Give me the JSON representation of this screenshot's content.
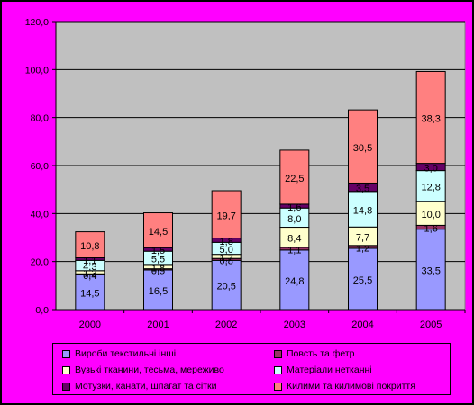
{
  "chart_data": {
    "type": "stacked-bar",
    "categories": [
      "2000",
      "2001",
      "2002",
      "2003",
      "2004",
      "2005"
    ],
    "ylim": [
      0,
      120
    ],
    "yticks": [
      "0,0",
      "20,0",
      "40,0",
      "60,0",
      "80,0",
      "100,0",
      "120,0"
    ],
    "grid": true,
    "legend_position": "bottom",
    "series": [
      {
        "name": "Вироби текстильні інші",
        "color": "#9999FF",
        "values": [
          14.5,
          16.5,
          20.5,
          24.8,
          25.5,
          33.5
        ],
        "labels": [
          "14,5",
          "16,5",
          "20,5",
          "24,8",
          "25,5",
          "33,5"
        ]
      },
      {
        "name": "Повсть та фетр",
        "color": "#993366",
        "values": [
          0.4,
          0.5,
          0.8,
          1.1,
          1.2,
          1.6
        ],
        "labels": [
          "0,4",
          "0,5",
          "0,8",
          "1,1",
          "1,2",
          "1,6"
        ]
      },
      {
        "name": "Вузькі тканини, тесьма, мереживо",
        "color": "#FFFFCC",
        "values": [
          1.3,
          1.8,
          1.7,
          8.4,
          7.7,
          10.0
        ],
        "labels": [
          "1,3",
          "1,8",
          "1,7",
          "8,4",
          "7,7",
          "10,0"
        ]
      },
      {
        "name": "Матеріали нетканні",
        "color": "#CCFFFF",
        "values": [
          4.3,
          5.5,
          5.0,
          8.0,
          14.8,
          12.8
        ],
        "labels": [
          "4,3",
          "5,5",
          "5,0",
          "8,0",
          "14,8",
          "12,8"
        ]
      },
      {
        "name": "Мотузки, канати, шпагат та сітки",
        "color": "#660066",
        "values": [
          1.1,
          1.5,
          1.8,
          1.6,
          3.5,
          3.0
        ],
        "labels": [
          "1,1",
          "1,5",
          "1,8",
          "1,6",
          "3,5",
          "3,0"
        ]
      },
      {
        "name": "Килими та килимові покриття",
        "color": "#FF8080",
        "values": [
          10.8,
          14.5,
          19.7,
          22.5,
          30.5,
          38.3
        ],
        "labels": [
          "10,8",
          "14,5",
          "19,7",
          "22,5",
          "30,5",
          "38,3"
        ]
      }
    ]
  }
}
